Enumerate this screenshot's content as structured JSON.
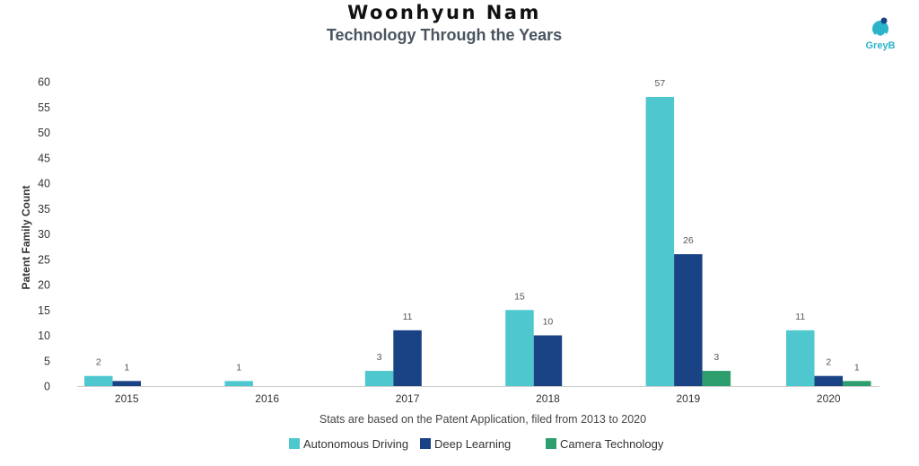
{
  "header": {
    "title": "Woonhyun Nam",
    "subtitle": "Technology Through the Years",
    "logo_text": "GreyB"
  },
  "colors": {
    "autonomous_driving": "#4ec8ce",
    "deep_learning": "#1a4386",
    "camera_technology": "#2e9e6e",
    "axis_text": "#333333",
    "label_text": "#555555"
  },
  "chart_data": {
    "type": "bar",
    "title": "Woonhyun Nam",
    "subtitle": "Technology Through the Years",
    "xlabel": "Stats are based on the Patent Application, filed from 2013 to 2020",
    "ylabel": "Patent Family Count",
    "categories": [
      "2015",
      "2016",
      "2017",
      "2018",
      "2019",
      "2020"
    ],
    "yticks": [
      "0",
      "5",
      "10",
      "15",
      "20",
      "25",
      "30",
      "35",
      "40",
      "45",
      "50",
      "55",
      "60"
    ],
    "ylim": [
      0,
      60
    ],
    "grid": false,
    "legend_position": "bottom",
    "series": [
      {
        "name": "Autonomous Driving",
        "values": [
          2,
          1,
          3,
          15,
          57,
          11
        ]
      },
      {
        "name": "Deep Learning",
        "values": [
          1,
          null,
          11,
          10,
          26,
          2
        ]
      },
      {
        "name": "Camera Technology",
        "values": [
          null,
          null,
          null,
          null,
          3,
          1
        ]
      }
    ]
  }
}
